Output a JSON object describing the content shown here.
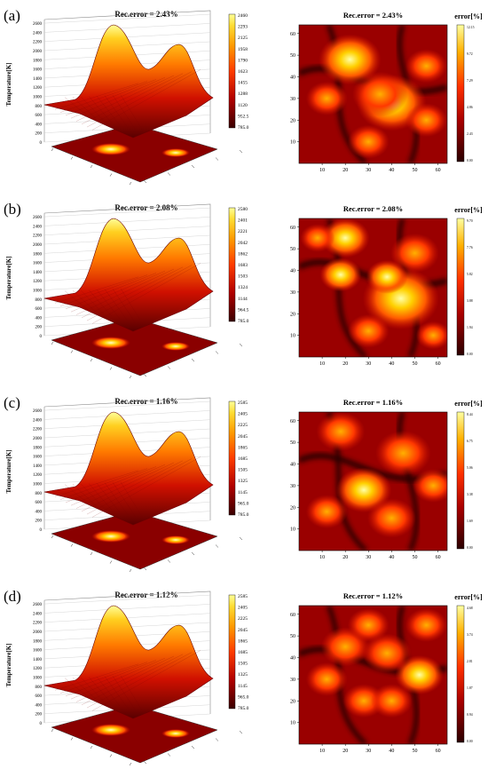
{
  "panels": [
    {
      "label": "(a)",
      "surface": {
        "title": "Rec.error = 2.43%",
        "zlabel": "Temperature[K]",
        "zticks": [
          "0",
          "200",
          "400",
          "600",
          "800",
          "1000",
          "1200",
          "1400",
          "1600",
          "1800",
          "2000",
          "2200",
          "2400",
          "2600"
        ],
        "colorbar_ticks": [
          "2460",
          "2293",
          "2125",
          "1958",
          "1790",
          "1623",
          "1455",
          "1288",
          "1120",
          "952.5",
          "785.0"
        ]
      },
      "error": {
        "title": "Rec.error = 2.43%",
        "colorbar_label": "error[%]",
        "colorbar_ticks": [
          "12.15",
          "9.72",
          "7.29",
          "4.86",
          "2.43",
          "0.00"
        ],
        "xticks": [
          "10",
          "20",
          "30",
          "40",
          "50",
          "60"
        ],
        "yticks": [
          "60",
          "50",
          "40",
          "30",
          "20",
          "10"
        ]
      }
    },
    {
      "label": "(b)",
      "surface": {
        "title": "Rec.error = 2.08%",
        "zlabel": "Temperature[K]",
        "zticks": [
          "0",
          "200",
          "400",
          "600",
          "800",
          "1000",
          "1200",
          "1400",
          "1600",
          "1800",
          "2000",
          "2200",
          "2400",
          "2600"
        ],
        "colorbar_ticks": [
          "2580",
          "2401",
          "2221",
          "2042",
          "1862",
          "1683",
          "1503",
          "1324",
          "1144",
          "964.5",
          "785.0"
        ]
      },
      "error": {
        "title": "Rec.error = 2.08%",
        "colorbar_label": "error[%]",
        "colorbar_ticks": [
          "9.70",
          "7.76",
          "5.82",
          "3.88",
          "1.94",
          "0.00"
        ],
        "xticks": [
          "10",
          "20",
          "30",
          "40",
          "50",
          "60"
        ],
        "yticks": [
          "60",
          "50",
          "40",
          "30",
          "20",
          "10"
        ]
      }
    },
    {
      "label": "(c)",
      "surface": {
        "title": "Rec.error = 1.16%",
        "zlabel": "Temperature[K]",
        "zticks": [
          "0",
          "200",
          "400",
          "600",
          "800",
          "1000",
          "1200",
          "1400",
          "1600",
          "1800",
          "2000",
          "2200",
          "2400",
          "2600"
        ],
        "colorbar_ticks": [
          "2585",
          "2405",
          "2225",
          "2045",
          "1865",
          "1685",
          "1505",
          "1325",
          "1145",
          "965.0",
          "785.0"
        ]
      },
      "error": {
        "title": "Rec.error = 1.16%",
        "colorbar_label": "error[%]",
        "colorbar_ticks": [
          "8.44",
          "6.75",
          "5.06",
          "3.38",
          "1.69",
          "0.00"
        ],
        "xticks": [
          "10",
          "20",
          "30",
          "40",
          "50",
          "60"
        ],
        "yticks": [
          "60",
          "50",
          "40",
          "30",
          "20",
          "10"
        ]
      }
    },
    {
      "label": "(d)",
      "surface": {
        "title": "Rec.error = 1.12%",
        "zlabel": "Temperature[K]",
        "zticks": [
          "0",
          "200",
          "400",
          "600",
          "800",
          "1000",
          "1200",
          "1400",
          "1600",
          "1800",
          "2000",
          "2200",
          "2400",
          "2600"
        ],
        "colorbar_ticks": [
          "2585",
          "2405",
          "2225",
          "2045",
          "1865",
          "1685",
          "1505",
          "1325",
          "1145",
          "965.0",
          "785.0"
        ]
      },
      "error": {
        "title": "Rec.error = 1.12%",
        "colorbar_label": "error[%]",
        "colorbar_ticks": [
          "4.68",
          "3.74",
          "2.81",
          "1.87",
          "0.94",
          "0.00"
        ],
        "xticks": [
          "10",
          "20",
          "30",
          "40",
          "50",
          "60"
        ],
        "yticks": [
          "60",
          "50",
          "40",
          "30",
          "20",
          "10"
        ]
      }
    }
  ],
  "colormap": [
    "#3a0000",
    "#8b0000",
    "#d41a00",
    "#ff6a00",
    "#ffb300",
    "#ffff66"
  ],
  "chart_data": [
    {
      "type": "heatmap",
      "title": "Rec.error = 2.43%",
      "colorbar_label": "Temperature[K]",
      "zlim": [
        785.0,
        2460
      ]
    },
    {
      "type": "heatmap",
      "title": "Rec.error = 2.43%",
      "colorbar_label": "error[%]",
      "xlim": [
        1,
        64
      ],
      "ylim": [
        1,
        64
      ],
      "zlim": [
        0.0,
        12.15
      ]
    },
    {
      "type": "heatmap",
      "title": "Rec.error = 2.08%",
      "colorbar_label": "Temperature[K]",
      "zlim": [
        785.0,
        2580
      ]
    },
    {
      "type": "heatmap",
      "title": "Rec.error = 2.08%",
      "colorbar_label": "error[%]",
      "xlim": [
        1,
        64
      ],
      "ylim": [
        1,
        64
      ],
      "zlim": [
        0.0,
        9.7
      ]
    },
    {
      "type": "heatmap",
      "title": "Rec.error = 1.16%",
      "colorbar_label": "Temperature[K]",
      "zlim": [
        785.0,
        2585
      ]
    },
    {
      "type": "heatmap",
      "title": "Rec.error = 1.16%",
      "colorbar_label": "error[%]",
      "xlim": [
        1,
        64
      ],
      "ylim": [
        1,
        64
      ],
      "zlim": [
        0.0,
        8.44
      ]
    },
    {
      "type": "heatmap",
      "title": "Rec.error = 1.12%",
      "colorbar_label": "Temperature[K]",
      "zlim": [
        785.0,
        2585
      ]
    },
    {
      "type": "heatmap",
      "title": "Rec.error = 1.12%",
      "colorbar_label": "error[%]",
      "xlim": [
        1,
        64
      ],
      "ylim": [
        1,
        64
      ],
      "zlim": [
        0.0,
        4.68
      ]
    }
  ]
}
